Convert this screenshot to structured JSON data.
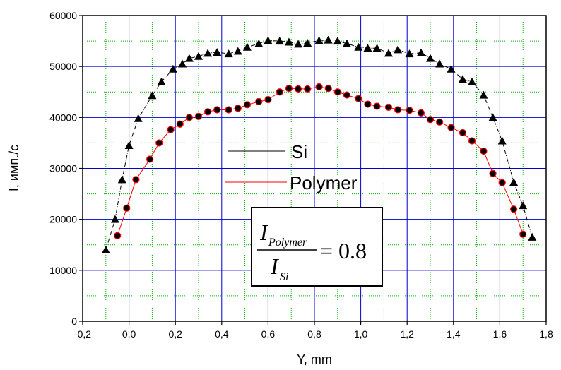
{
  "chart_data": {
    "type": "scatter",
    "xlabel": "Y, mm",
    "ylabel": "I, имп./с",
    "xlim": [
      -0.2,
      1.8
    ],
    "ylim": [
      0,
      60000
    ],
    "x_ticks": [
      "-0,2",
      "0,0",
      "0,2",
      "0,4",
      "0,6",
      "0,8",
      "1,0",
      "1,2",
      "1,4",
      "1,6",
      "1,8"
    ],
    "y_ticks": [
      "0",
      "10000",
      "20000",
      "30000",
      "40000",
      "50000",
      "60000"
    ],
    "grid": "major blue solid, minor green dotted",
    "legend_position": "center-left",
    "series": [
      {
        "name": "Si",
        "color": "#000000",
        "marker": "triangle",
        "x": [
          -0.1,
          -0.06,
          -0.03,
          0.0,
          0.04,
          0.1,
          0.14,
          0.19,
          0.23,
          0.26,
          0.3,
          0.34,
          0.38,
          0.43,
          0.47,
          0.51,
          0.56,
          0.6,
          0.65,
          0.69,
          0.73,
          0.77,
          0.82,
          0.86,
          0.9,
          0.94,
          0.99,
          1.03,
          1.07,
          1.12,
          1.16,
          1.21,
          1.26,
          1.3,
          1.34,
          1.39,
          1.44,
          1.48,
          1.53,
          1.57,
          1.61,
          1.66,
          1.7,
          1.74
        ],
        "y": [
          14000,
          20000,
          27800,
          34500,
          39800,
          44300,
          47000,
          49500,
          50500,
          51600,
          52000,
          52600,
          52800,
          52500,
          53000,
          53800,
          54500,
          55100,
          55000,
          54800,
          54400,
          54600,
          55100,
          55200,
          55000,
          54500,
          53800,
          53600,
          53600,
          52600,
          53300,
          52500,
          52700,
          51600,
          50500,
          49500,
          47500,
          47000,
          44400,
          40000,
          35400,
          27300,
          22700,
          16500
        ]
      },
      {
        "name": "Polymer",
        "color": "#ff0000",
        "marker": "circle",
        "x": [
          -0.05,
          -0.01,
          0.03,
          0.09,
          0.13,
          0.18,
          0.22,
          0.26,
          0.3,
          0.34,
          0.38,
          0.43,
          0.47,
          0.51,
          0.56,
          0.6,
          0.65,
          0.69,
          0.73,
          0.77,
          0.82,
          0.86,
          0.9,
          0.94,
          0.99,
          1.03,
          1.07,
          1.12,
          1.16,
          1.21,
          1.26,
          1.3,
          1.34,
          1.39,
          1.44,
          1.48,
          1.53,
          1.57,
          1.61,
          1.66,
          1.7
        ],
        "y": [
          16800,
          22200,
          27800,
          31800,
          35000,
          37600,
          38700,
          40000,
          40200,
          41100,
          41500,
          41500,
          41800,
          42500,
          43100,
          43500,
          45000,
          45700,
          45600,
          45600,
          46000,
          45700,
          45000,
          44400,
          43700,
          42600,
          42200,
          42000,
          41500,
          41400,
          40900,
          39600,
          39100,
          38000,
          37000,
          35400,
          33400,
          29000,
          27200,
          22000,
          17100
        ]
      }
    ],
    "annotation": {
      "numerator": "I",
      "numerator_sub": "Polymer",
      "denominator": "I",
      "denominator_sub": "Si",
      "rhs": "= 0.8"
    }
  }
}
